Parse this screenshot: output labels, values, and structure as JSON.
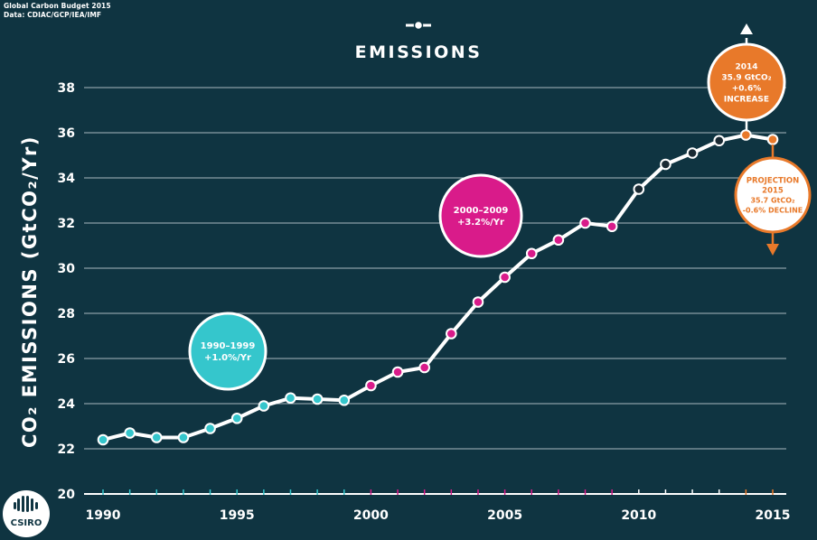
{
  "source": {
    "line1": "Global Carbon Budget 2015",
    "line2": "Data: CDIAC/GCP/IEA/IMF"
  },
  "logo": {
    "text": "CSIRO"
  },
  "colors": {
    "background": "#0f3441",
    "line": "#ffffff",
    "grid": "#a9b9c0",
    "decade_1990s": "#35c6cc",
    "decade_2000s": "#d91b8a",
    "decade_2010s": "#1a2a33",
    "highlight": "#e8792a"
  },
  "chart_data": {
    "type": "line",
    "title": "EMISSIONS",
    "ylabel": "CO₂ EMISSIONS (GtCO₂/Yr)",
    "ylim": [
      20,
      38
    ],
    "yticks": [
      20,
      22,
      24,
      26,
      28,
      30,
      32,
      34,
      36,
      38
    ],
    "xlim": [
      1990,
      2015
    ],
    "xticks": [
      1990,
      1995,
      2000,
      2005,
      2010,
      2015
    ],
    "grid": true,
    "x": [
      1990,
      1991,
      1992,
      1993,
      1994,
      1995,
      1996,
      1997,
      1998,
      1999,
      2000,
      2001,
      2002,
      2003,
      2004,
      2005,
      2006,
      2007,
      2008,
      2009,
      2010,
      2011,
      2012,
      2013,
      2014,
      2015
    ],
    "values": [
      22.4,
      22.7,
      22.5,
      22.5,
      22.9,
      23.35,
      23.9,
      24.25,
      24.2,
      24.15,
      24.8,
      25.4,
      25.6,
      27.1,
      28.5,
      29.6,
      30.65,
      31.25,
      32.0,
      31.85,
      33.5,
      34.6,
      35.1,
      35.65,
      35.9,
      35.7
    ],
    "annotations": [
      {
        "id": "decade-1990s",
        "lines": [
          "1990–1999",
          "+1.0%/Yr"
        ],
        "color": "#35c6cc"
      },
      {
        "id": "decade-2000s",
        "lines": [
          "2000–2009",
          "+3.2%/Yr"
        ],
        "color": "#d91b8a"
      },
      {
        "id": "year-2014",
        "lines": [
          "2014",
          "35.9 GtCO₂",
          "+0.6%",
          "INCREASE"
        ],
        "color": "#e8792a"
      },
      {
        "id": "projection-2015",
        "lines": [
          "PROJECTION",
          "2015",
          "35.7 GtCO₂",
          "-0.6% DECLINE"
        ],
        "color": "#e8792a"
      }
    ]
  }
}
